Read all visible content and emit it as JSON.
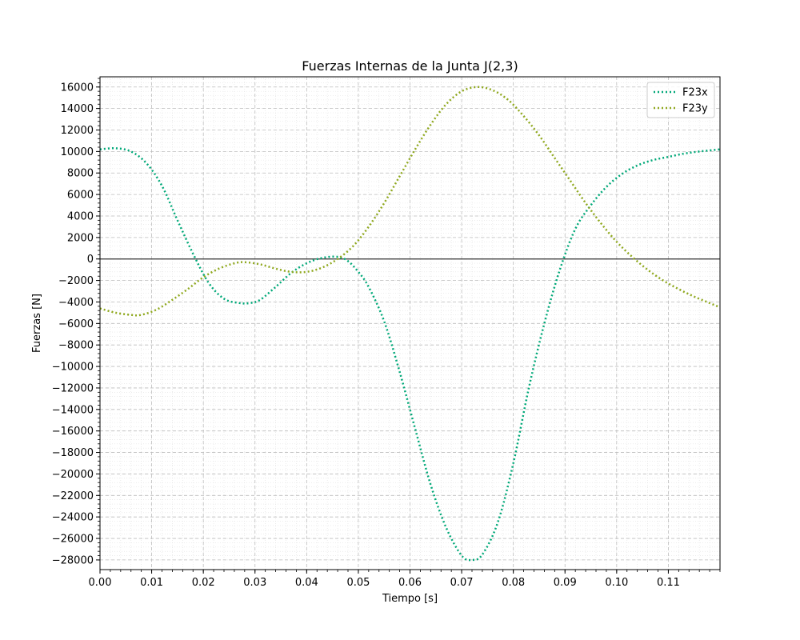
{
  "chart_data": {
    "type": "line",
    "title": "Fuerzas Internas de la Junta J(2,3)",
    "xlabel": "Tiempo [s]",
    "ylabel": "Fuerzas [N]",
    "xlim": [
      0.0,
      0.12
    ],
    "ylim": [
      -28900,
      16950
    ],
    "xticks": [
      0.0,
      0.01,
      0.02,
      0.03,
      0.04,
      0.05,
      0.06,
      0.07,
      0.08,
      0.09,
      0.1,
      0.11
    ],
    "xtick_labels": [
      "0.00",
      "0.01",
      "0.02",
      "0.03",
      "0.04",
      "0.05",
      "0.06",
      "0.07",
      "0.08",
      "0.09",
      "0.10",
      "0.11"
    ],
    "yticks": [
      16000,
      14000,
      12000,
      10000,
      8000,
      6000,
      4000,
      2000,
      0,
      -2000,
      -4000,
      -6000,
      -8000,
      -10000,
      -12000,
      -14000,
      -16000,
      -18000,
      -20000,
      -22000,
      -24000,
      -26000,
      -28000
    ],
    "ytick_labels": [
      "16000",
      "14000",
      "12000",
      "10000",
      "8000",
      "6000",
      "4000",
      "2000",
      "0",
      "−2000",
      "−4000",
      "−6000",
      "−8000",
      "−10000",
      "−12000",
      "−14000",
      "−16000",
      "−18000",
      "−20000",
      "−22000",
      "−24000",
      "−26000",
      "−28000"
    ],
    "grid": true,
    "minor_grid": true,
    "zero_line": true,
    "legend_position": "upper-right",
    "series": [
      {
        "name": "F23x",
        "color": "#00a878",
        "style": "dotted",
        "x": [
          0.0,
          0.003,
          0.006,
          0.009,
          0.012,
          0.015,
          0.018,
          0.021,
          0.024,
          0.027,
          0.029,
          0.031,
          0.034,
          0.037,
          0.04,
          0.043,
          0.046,
          0.048,
          0.05,
          0.052,
          0.055,
          0.058,
          0.061,
          0.064,
          0.067,
          0.07,
          0.072,
          0.074,
          0.077,
          0.08,
          0.083,
          0.086,
          0.089,
          0.092,
          0.095,
          0.098,
          0.101,
          0.104,
          0.107,
          0.11,
          0.113,
          0.116,
          0.12
        ],
        "y": [
          10200,
          10300,
          10000,
          8900,
          6800,
          3600,
          500,
          -2200,
          -3700,
          -4100,
          -4100,
          -3800,
          -2600,
          -1300,
          -400,
          100,
          200,
          -200,
          -1200,
          -2600,
          -5800,
          -10500,
          -15800,
          -21000,
          -25000,
          -27600,
          -28000,
          -27500,
          -24500,
          -19000,
          -12000,
          -6000,
          -1000,
          2800,
          5000,
          6700,
          7900,
          8700,
          9200,
          9500,
          9800,
          10000,
          10200
        ]
      },
      {
        "name": "F23y",
        "color": "#8fa81e",
        "style": "dotted",
        "x": [
          0.0,
          0.003,
          0.006,
          0.008,
          0.011,
          0.014,
          0.017,
          0.02,
          0.023,
          0.026,
          0.028,
          0.031,
          0.034,
          0.037,
          0.04,
          0.043,
          0.046,
          0.049,
          0.052,
          0.055,
          0.058,
          0.061,
          0.064,
          0.067,
          0.07,
          0.073,
          0.076,
          0.079,
          0.082,
          0.085,
          0.088,
          0.091,
          0.094,
          0.097,
          0.1,
          0.103,
          0.106,
          0.109,
          0.112,
          0.115,
          0.118,
          0.12
        ],
        "y": [
          -4600,
          -5000,
          -5200,
          -5200,
          -4700,
          -3800,
          -2800,
          -1700,
          -900,
          -400,
          -300,
          -500,
          -900,
          -1200,
          -1200,
          -800,
          0,
          1200,
          3000,
          5200,
          7700,
          10200,
          12500,
          14400,
          15600,
          16000,
          15700,
          14800,
          13300,
          11500,
          9400,
          7300,
          5200,
          3300,
          1600,
          200,
          -1000,
          -2000,
          -2800,
          -3500,
          -4100,
          -4500
        ]
      }
    ]
  }
}
